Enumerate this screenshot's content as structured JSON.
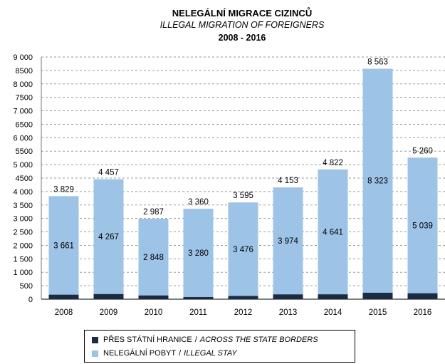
{
  "titles": {
    "main": "NELEGÁLNÍ MIGRACE CIZINCŮ",
    "sub": "ILLEGAL MIGRATION OF FOREIGNERS",
    "period": "2008 - 2016"
  },
  "legend": {
    "border_label_cz": "PŘES STÁTNÍ HRANICE",
    "border_label_en": "ACROSS THE STATE BORDERS",
    "stay_label_cz": "NELEGÁLNÍ POBYT",
    "stay_label_en": "ILLEGAL STAY",
    "separator": "/"
  },
  "colors": {
    "border_series": "#1a2b45",
    "stay_series": "#9dc3e6",
    "grid": "#9a9a9a"
  },
  "chart_data": {
    "type": "bar",
    "stacked": true,
    "title": "NELEGÁLNÍ MIGRACE CIZINCŮ",
    "subtitle": "ILLEGAL MIGRATION OF FOREIGNERS",
    "period": "2008 - 2016",
    "categories": [
      "2008",
      "2009",
      "2010",
      "2011",
      "2012",
      "2013",
      "2014",
      "2015",
      "2016"
    ],
    "series": [
      {
        "name": "PŘES STÁTNÍ HRANICE / ACROSS THE STATE BORDERS",
        "values": [
          168,
          190,
          139,
          80,
          119,
          179,
          181,
          240,
          221
        ]
      },
      {
        "name": "NELEGÁLNÍ POBYT / ILLEGAL STAY",
        "values": [
          3661,
          4267,
          2848,
          3280,
          3476,
          3974,
          4641,
          8323,
          5039
        ]
      }
    ],
    "segment_labels": [
      "3 661",
      "4 267",
      "2 848",
      "3 280",
      "3 476",
      "3 974",
      "4 641",
      "8 323",
      "5 039"
    ],
    "total_labels": [
      "3 829",
      "4 457",
      "2 987",
      "3 360",
      "3 595",
      "4 153",
      "4 822",
      "8 563",
      "5 260"
    ],
    "y_tick_labels": [
      "0",
      "500",
      "1 000",
      "1 500",
      "2 000",
      "2 500",
      "3 000",
      "3 500",
      "4 000",
      "4500",
      "5 000",
      "5500",
      "6 000",
      "6500",
      "7 000",
      "7500",
      "8 000",
      "8500",
      "9 000"
    ],
    "ylim": [
      0,
      9000
    ],
    "y_tick_step": 500,
    "grid": true,
    "legend_position": "bottom"
  }
}
